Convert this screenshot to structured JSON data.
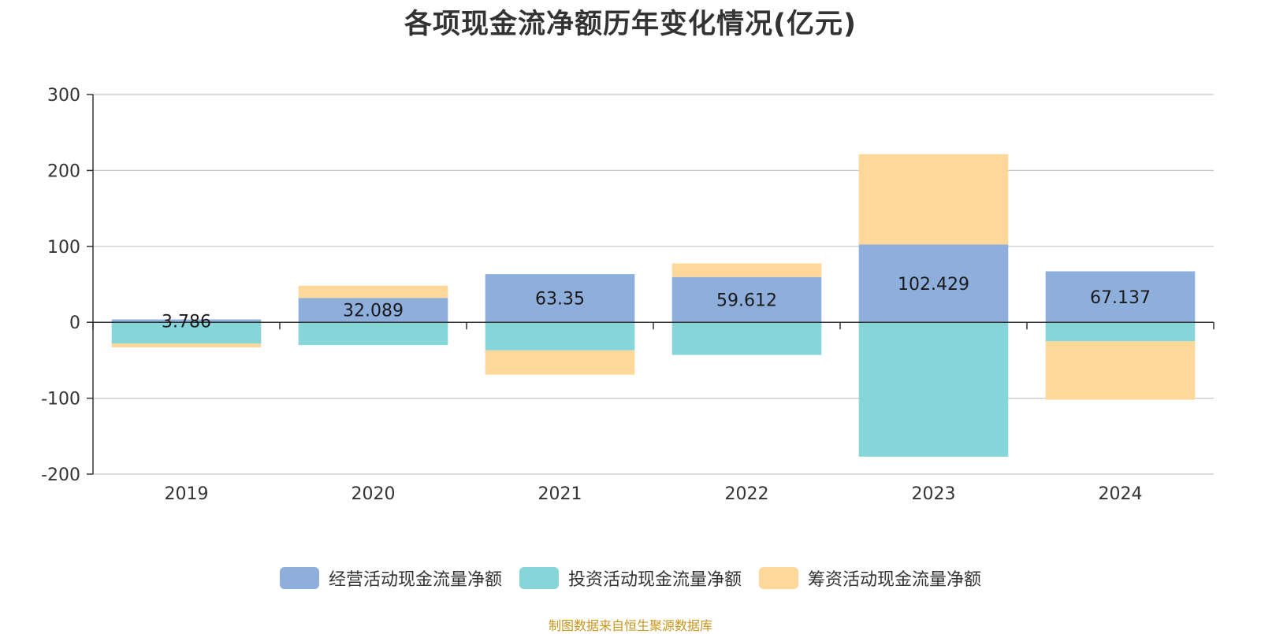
{
  "chart_data": {
    "type": "bar",
    "stacked": true,
    "title": "各项现金流净额历年变化情况(亿元)",
    "categories": [
      "2019",
      "2020",
      "2021",
      "2022",
      "2023",
      "2024"
    ],
    "series": [
      {
        "name": "经营活动现金流量净额",
        "color": "#8eaedb",
        "values": [
          3.786,
          32.089,
          63.35,
          59.612,
          102.429,
          67.137
        ],
        "labels": [
          "3.786",
          "32.089",
          "63.35",
          "59.612",
          "102.429",
          "67.137"
        ]
      },
      {
        "name": "投资活动现金流量净额",
        "color": "#86d5d8",
        "values": [
          -28,
          -30,
          -37,
          -43,
          -177,
          -25
        ]
      },
      {
        "name": "筹资活动现金流量净额",
        "color": "#fdd89a",
        "values": [
          -5,
          16,
          -32,
          18,
          119,
          -77
        ]
      }
    ],
    "ylim": [
      -200,
      300
    ],
    "yticks": [
      -200,
      -100,
      0,
      100,
      200,
      300
    ],
    "grid": true,
    "legend_position": "bottom"
  },
  "source_note": "制图数据来自恒生聚源数据库"
}
